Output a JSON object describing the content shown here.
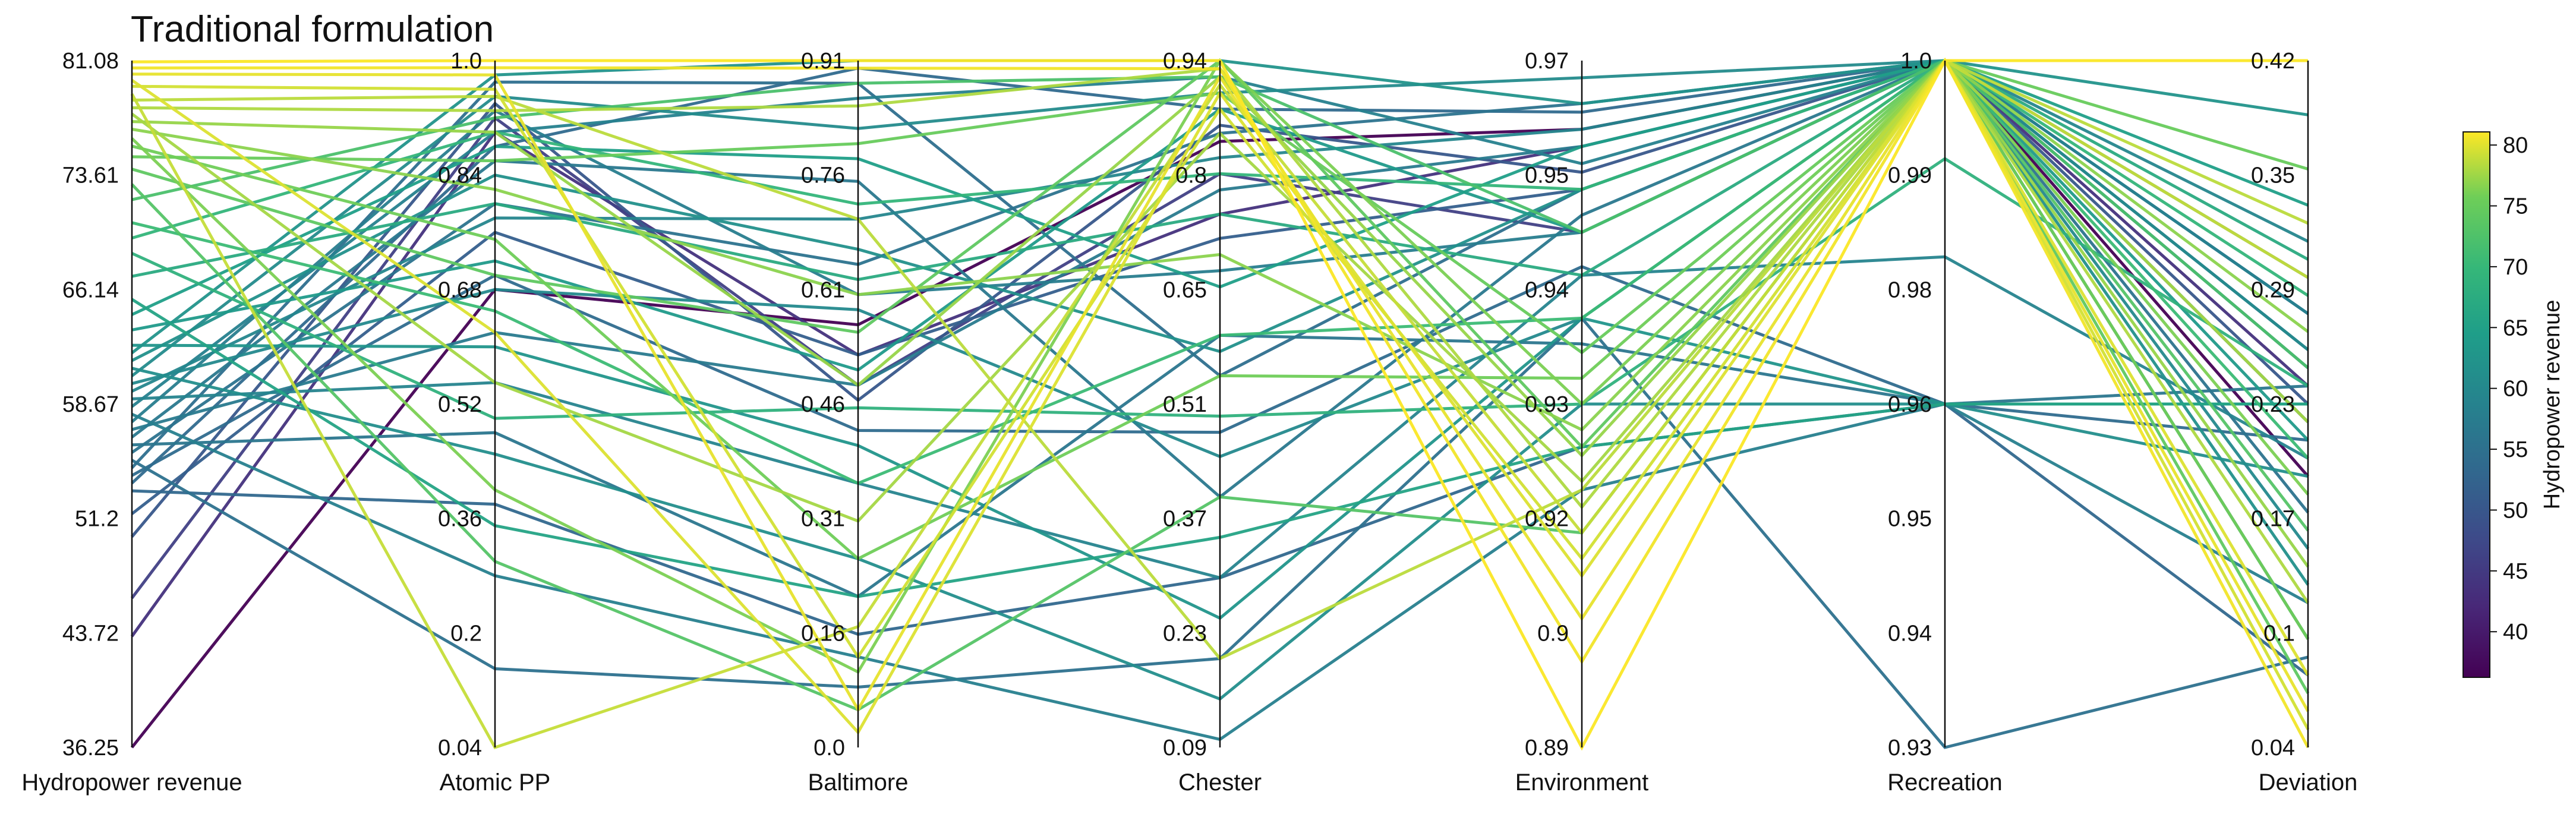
{
  "chart_data": {
    "type": "parallel-coordinates",
    "title": "Traditional formulation",
    "axes": [
      {
        "name": "Hydropower revenue",
        "ticks": [
          "81.08",
          "73.61",
          "66.14",
          "58.67",
          "51.2",
          "43.72",
          "36.25"
        ],
        "range": [
          36.25,
          81.08
        ]
      },
      {
        "name": "Atomic PP",
        "ticks": [
          "1.0",
          "0.84",
          "0.68",
          "0.52",
          "0.36",
          "0.2",
          "0.04"
        ],
        "range": [
          0.04,
          1.0
        ]
      },
      {
        "name": "Baltimore",
        "ticks": [
          "0.91",
          "0.76",
          "0.61",
          "0.46",
          "0.31",
          "0.16",
          "0.0"
        ],
        "range": [
          0.0,
          0.91
        ]
      },
      {
        "name": "Chester",
        "ticks": [
          "0.94",
          "0.8",
          "0.65",
          "0.51",
          "0.37",
          "0.23",
          "0.09"
        ],
        "range": [
          0.09,
          0.94
        ]
      },
      {
        "name": "Environment",
        "ticks": [
          "0.97",
          "0.95",
          "0.94",
          "0.93",
          "0.92",
          "0.9",
          "0.89"
        ],
        "range": [
          0.89,
          0.97
        ]
      },
      {
        "name": "Recreation",
        "ticks": [
          "1.0",
          "0.99",
          "0.98",
          "0.96",
          "0.95",
          "0.94",
          "0.93"
        ],
        "range": [
          0.93,
          1.0
        ]
      },
      {
        "name": "Deviation",
        "ticks": [
          "0.42",
          "0.35",
          "0.29",
          "0.23",
          "0.17",
          "0.1",
          "0.04"
        ],
        "range": [
          0.04,
          0.42
        ]
      }
    ],
    "colorbar": {
      "label": "Hydropower revenue",
      "colormap": "viridis",
      "range": [
        36.25,
        81.08
      ],
      "ticks": [
        "80",
        "75",
        "70",
        "65",
        "60",
        "55",
        "50",
        "45",
        "40"
      ]
    },
    "series": [
      {
        "values": [
          81.0,
          1.0,
          0.91,
          0.94,
          0.89,
          1.0,
          0.42
        ]
      },
      {
        "values": [
          80.6,
          0.99,
          0.9,
          0.93,
          0.9,
          1.0,
          0.04
        ]
      },
      {
        "values": [
          80.2,
          0.98,
          0.05,
          0.92,
          0.905,
          1.0,
          0.06
        ]
      },
      {
        "values": [
          79.8,
          0.62,
          0.02,
          0.9,
          0.91,
          1.0,
          0.08
        ]
      },
      {
        "values": [
          79.4,
          0.96,
          0.12,
          0.88,
          0.912,
          1.0,
          0.05
        ]
      },
      {
        "values": [
          78.9,
          0.04,
          0.16,
          0.91,
          0.915,
          1.0,
          0.3
        ]
      },
      {
        "values": [
          78.5,
          0.95,
          0.7,
          0.2,
          0.92,
          1.0,
          0.33
        ]
      },
      {
        "values": [
          78.0,
          0.93,
          0.85,
          0.93,
          0.918,
          1.0,
          0.12
        ]
      },
      {
        "values": [
          77.6,
          0.55,
          0.3,
          0.85,
          0.921,
          1.0,
          0.22
        ]
      },
      {
        "values": [
          77.1,
          0.9,
          0.48,
          0.92,
          0.924,
          1.0,
          0.14
        ]
      },
      {
        "values": [
          76.6,
          0.82,
          0.6,
          0.7,
          0.927,
          1.0,
          0.27
        ]
      },
      {
        "values": [
          76.0,
          0.4,
          0.1,
          0.94,
          0.93,
          1.0,
          0.18
        ]
      },
      {
        "values": [
          75.5,
          0.75,
          0.25,
          0.55,
          0.933,
          1.0,
          0.1
        ]
      },
      {
        "values": [
          74.8,
          0.86,
          0.8,
          0.9,
          0.936,
          1.0,
          0.36
        ]
      },
      {
        "values": [
          74.0,
          0.7,
          0.55,
          0.94,
          0.925,
          1.0,
          0.07
        ]
      },
      {
        "values": [
          73.0,
          0.3,
          0.05,
          0.4,
          0.915,
          1.0,
          0.16
        ]
      },
      {
        "values": [
          72.0,
          0.92,
          0.88,
          0.92,
          0.95,
          1.0,
          0.25
        ]
      },
      {
        "values": [
          70.5,
          0.65,
          0.35,
          0.6,
          0.94,
          1.0,
          0.2
        ]
      },
      {
        "values": [
          69.5,
          0.9,
          0.72,
          0.8,
          0.955,
          1.0,
          0.29
        ]
      },
      {
        "values": [
          68.5,
          0.5,
          0.45,
          0.5,
          0.93,
          0.99,
          0.24
        ]
      },
      {
        "values": [
          67.0,
          0.8,
          0.62,
          0.75,
          0.945,
          1.0,
          0.31
        ]
      },
      {
        "values": [
          65.5,
          0.35,
          0.2,
          0.35,
          0.925,
          0.965,
          0.23
        ]
      },
      {
        "values": [
          64.5,
          0.88,
          0.78,
          0.66,
          0.96,
          1.0,
          0.34
        ]
      },
      {
        "values": [
          63.5,
          0.72,
          0.5,
          0.88,
          0.95,
          1.0,
          0.21
        ]
      },
      {
        "values": [
          62.5,
          0.6,
          0.4,
          0.25,
          0.94,
          0.965,
          0.23
        ]
      },
      {
        "values": [
          62.0,
          0.98,
          0.91,
          0.94,
          0.965,
          1.0,
          0.39
        ]
      },
      {
        "values": [
          61.5,
          0.84,
          0.66,
          0.58,
          0.955,
          1.0,
          0.13
        ]
      },
      {
        "values": [
          61.0,
          0.45,
          0.25,
          0.15,
          0.93,
          0.965,
          0.19
        ]
      },
      {
        "values": [
          60.5,
          0.95,
          0.82,
          0.9,
          0.968,
          1.0,
          0.26
        ]
      },
      {
        "values": [
          60.0,
          0.68,
          0.58,
          0.45,
          0.94,
          1.0,
          0.15
        ]
      },
      {
        "values": [
          59.5,
          0.78,
          0.7,
          0.82,
          0.962,
          1.0,
          0.32
        ]
      },
      {
        "values": [
          59.0,
          0.55,
          0.35,
          0.3,
          0.945,
          0.98,
          0.2
        ]
      },
      {
        "values": [
          58.5,
          0.9,
          0.86,
          0.92,
          0.958,
          1.0,
          0.28
        ]
      },
      {
        "values": [
          58.0,
          0.28,
          0.12,
          0.1,
          0.92,
          0.965,
          0.12
        ]
      },
      {
        "values": [
          57.5,
          0.93,
          0.6,
          0.68,
          0.95,
          1.0,
          0.22
        ]
      },
      {
        "values": [
          57.0,
          0.62,
          0.48,
          0.78,
          0.96,
          1.0,
          0.1
        ]
      },
      {
        "values": [
          56.5,
          0.86,
          0.75,
          0.4,
          0.952,
          1.0,
          0.3
        ]
      },
      {
        "values": [
          56.0,
          0.48,
          0.2,
          0.6,
          0.937,
          0.965,
          0.24
        ]
      },
      {
        "values": [
          55.5,
          0.8,
          0.64,
          0.85,
          0.965,
          1.0,
          0.17
        ]
      },
      {
        "values": [
          55.0,
          0.15,
          0.08,
          0.2,
          0.94,
          0.93,
          0.09
        ]
      },
      {
        "values": [
          54.5,
          0.97,
          0.88,
          0.55,
          0.955,
          1.0,
          0.25
        ]
      },
      {
        "values": [
          54.0,
          0.7,
          0.42,
          0.48,
          0.946,
          0.965,
          0.21
        ]
      },
      {
        "values": [
          53.5,
          0.88,
          0.9,
          0.88,
          0.964,
          1.0,
          0.28
        ]
      },
      {
        "values": [
          53.0,
          0.38,
          0.15,
          0.3,
          0.925,
          0.965,
          0.08
        ]
      },
      {
        "values": [
          51.5,
          0.76,
          0.52,
          0.72,
          0.955,
          1.0,
          0.26
        ]
      },
      {
        "values": [
          50.0,
          0.94,
          0.46,
          0.86,
          0.957,
          1.0,
          0.23
        ]
      },
      {
        "values": [
          46.0,
          0.92,
          0.48,
          0.8,
          0.95,
          1.0,
          0.22
        ]
      },
      {
        "values": [
          43.5,
          0.9,
          0.52,
          0.75,
          0.96,
          1.0,
          0.24
        ]
      },
      {
        "values": [
          36.25,
          0.68,
          0.56,
          0.84,
          0.962,
          1.0,
          0.19
        ]
      }
    ]
  }
}
